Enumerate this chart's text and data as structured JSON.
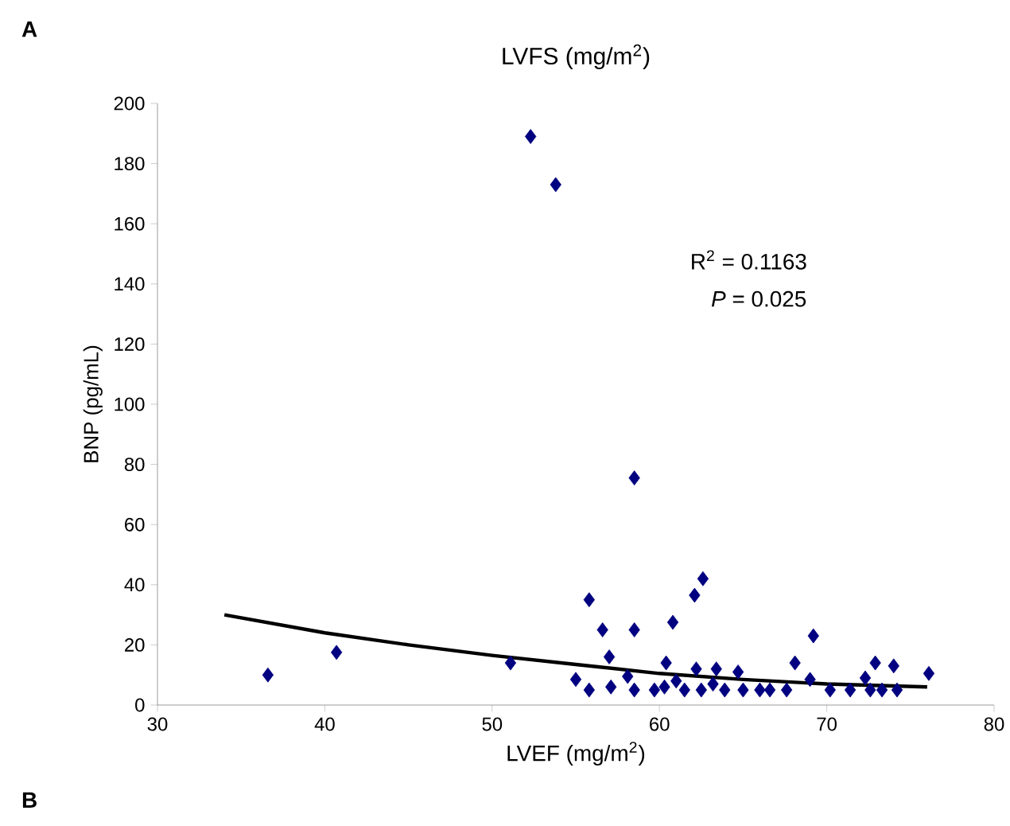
{
  "chart_data": {
    "type": "scatter",
    "title": "LVFS (mg/m$^{2}$)",
    "xlabel": "LVEF (mg/m$^{2}$)",
    "ylabel": "BNP (pg/mL)",
    "xlim": [
      30,
      80
    ],
    "ylim": [
      0,
      200
    ],
    "xticks": [
      30,
      40,
      50,
      60,
      70,
      80
    ],
    "yticks": [
      0,
      20,
      40,
      60,
      80,
      100,
      120,
      140,
      160,
      180,
      200
    ],
    "grid": false,
    "annotations": [
      "A",
      "B",
      "R$^{2}$ = 0.1163",
      "*P* = 0.025"
    ],
    "series": [
      {
        "marker": "diamond",
        "color": "#000080",
        "x": [
          36.6,
          40.7,
          51.1,
          52.3,
          53.8,
          55.0,
          58.5,
          55.8,
          56.6,
          58.5,
          57.0,
          55.8,
          57.1,
          58.5,
          58.1,
          60.8,
          62.1,
          62.6,
          60.4,
          59.7,
          60.3,
          61.0,
          62.2,
          61.5,
          62.5,
          63.4,
          63.2,
          63.9,
          64.7,
          65.0,
          66.0,
          66.6,
          67.6,
          68.1,
          69.2,
          69.0,
          70.2,
          71.4,
          72.3,
          72.9,
          74.0,
          72.6,
          73.3,
          74.2,
          76.1
        ],
        "values": [
          10,
          17.5,
          14,
          189,
          173,
          8.5,
          75.5,
          35,
          25,
          25,
          16,
          5,
          6,
          5,
          9.5,
          27.5,
          36.5,
          42,
          14,
          5,
          6,
          8,
          12,
          5,
          5,
          12,
          7,
          5,
          11,
          5,
          5,
          5,
          5,
          14,
          23,
          8.5,
          5,
          5,
          9,
          14,
          13,
          5,
          5,
          5,
          10.5
        ]
      },
      {
        "type": "line",
        "marker": "none",
        "line_style": "solid",
        "color": "#000000",
        "x": [
          34,
          40,
          45,
          50,
          55,
          60,
          65,
          70,
          76
        ],
        "values": [
          30,
          24,
          20,
          16.5,
          13.5,
          10.5,
          8.5,
          7,
          6
        ]
      }
    ]
  }
}
